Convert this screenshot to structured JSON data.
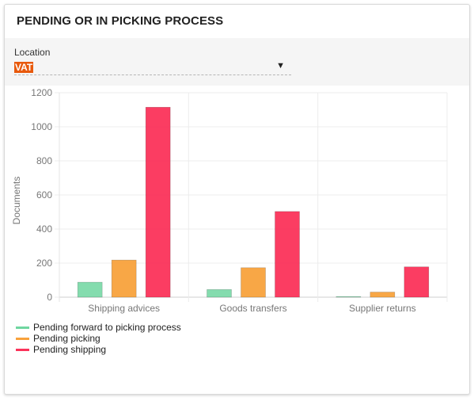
{
  "card": {
    "title": "PENDING OR IN PICKING PROCESS"
  },
  "filter": {
    "label": "Location",
    "selected": "VAT"
  },
  "colors": {
    "accent": "#e8590c",
    "series": [
      "#6fd6a0",
      "#f8a23c",
      "#fb335a"
    ]
  },
  "chart_data": {
    "type": "bar",
    "categories": [
      "Shipping advices",
      "Goods transfers",
      "Supplier returns"
    ],
    "series": [
      {
        "name": "Pending forward to picking process",
        "values": [
          88,
          45,
          2
        ]
      },
      {
        "name": "Pending picking",
        "values": [
          218,
          173,
          30
        ]
      },
      {
        "name": "Pending shipping",
        "values": [
          1115,
          503,
          178
        ]
      }
    ],
    "ylabel": "Documents",
    "xlabel": "",
    "ylim": [
      0,
      1200
    ],
    "yticks": [
      0,
      200,
      400,
      600,
      800,
      1000,
      1200
    ],
    "grid": true,
    "legend_position": "bottom-left"
  }
}
